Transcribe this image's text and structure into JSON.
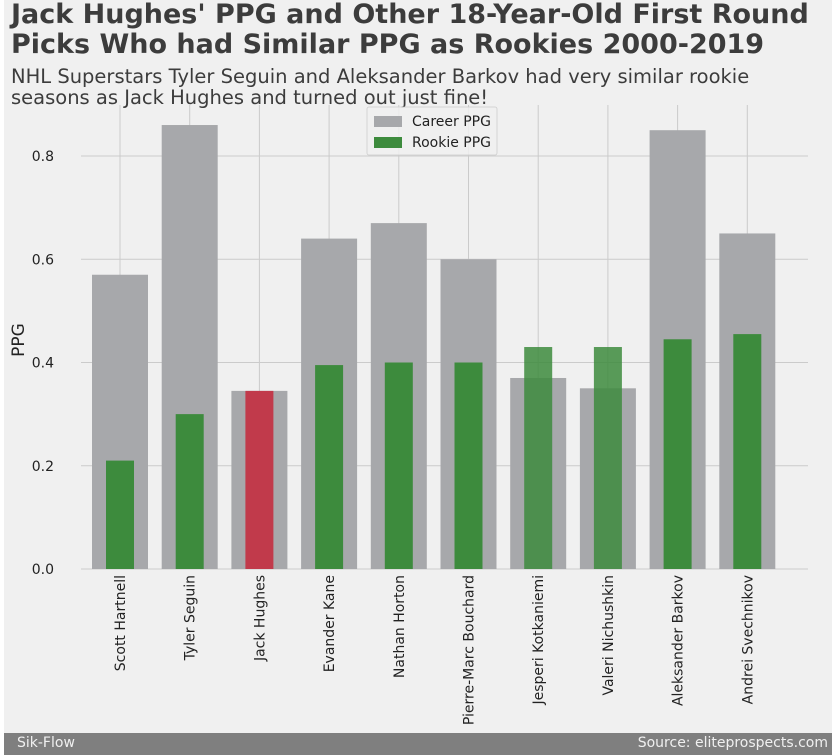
{
  "title": "Jack Hughes' PPG and Other 18-Year-Old First Round Picks Who had Similar PPG as Rookies 2000-2019",
  "subtitle": "NHL Superstars Tyler Seguin and Aleksander Barkov had very similar rookie seasons as Jack Hughes and turned out just fine!",
  "footer": {
    "left": "Sik-Flow",
    "right": "Source: eliteprospects.com"
  },
  "colors": {
    "background": "#f0f0f0",
    "career": "#a7a8ab",
    "rookie": "#3d8b3d",
    "highlight": "#c13a4b",
    "grid": "#cbcbcb",
    "footer": "#7f7f7f"
  },
  "chart_data": {
    "type": "bar",
    "categories": [
      "Scott Hartnell",
      "Tyler Seguin",
      "Jack Hughes",
      "Evander Kane",
      "Nathan Horton",
      "Pierre-Marc Bouchard",
      "Jesperi Kotkaniemi",
      "Valeri Nichushkin",
      "Aleksander Barkov",
      "Andrei Svechnikov"
    ],
    "series": [
      {
        "name": "Career PPG",
        "values": [
          0.57,
          0.86,
          0.345,
          0.64,
          0.67,
          0.6,
          0.37,
          0.35,
          0.85,
          0.65
        ]
      },
      {
        "name": "Rookie PPG",
        "values": [
          0.21,
          0.3,
          0.345,
          0.395,
          0.4,
          0.4,
          0.43,
          0.43,
          0.445,
          0.455
        ]
      }
    ],
    "highlight_category": "Jack Hughes",
    "xlabel": "",
    "ylabel": "PPG",
    "ylim": [
      0,
      0.9
    ],
    "yticks": [
      "0.0",
      "0.2",
      "0.4",
      "0.6",
      "0.8"
    ],
    "grid": true,
    "legend_position": "top-center"
  }
}
